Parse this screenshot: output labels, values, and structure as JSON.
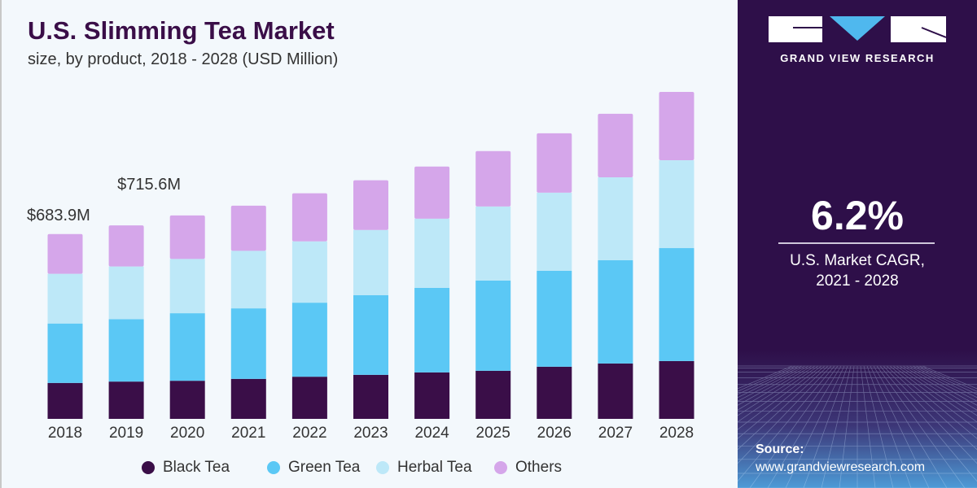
{
  "header": {
    "title": "U.S. Slimming Tea Market",
    "subtitle": "size, by product, 2018 - 2028 (USD Million)"
  },
  "chart_data": {
    "type": "bar",
    "stacked": true,
    "title": "U.S. Slimming Tea Market",
    "subtitle": "size, by product, 2018 - 2028 (USD Million)",
    "xlabel": "",
    "ylabel": "",
    "ylim": [
      0,
      1250
    ],
    "grid": false,
    "legend_position": "bottom",
    "categories": [
      "2018",
      "2019",
      "2020",
      "2021",
      "2022",
      "2023",
      "2024",
      "2025",
      "2026",
      "2027",
      "2028"
    ],
    "series": [
      {
        "name": "Black Tea",
        "color": "#3a0e48",
        "values": [
          133,
          138,
          141,
          148,
          156,
          163,
          172,
          178,
          193,
          205,
          214
        ]
      },
      {
        "name": "Green Tea",
        "color": "#5bc8f5",
        "values": [
          220,
          231,
          250,
          261,
          274,
          295,
          313,
          334,
          355,
          382,
          418
        ]
      },
      {
        "name": "Herbal Tea",
        "color": "#bde8f8",
        "values": [
          184,
          195,
          201,
          213,
          227,
          241,
          256,
          274,
          289,
          307,
          325
        ]
      },
      {
        "name": "Others",
        "color": "#d5a6ea",
        "values": [
          147,
          152,
          161,
          167,
          178,
          184,
          193,
          205,
          220,
          235,
          253
        ]
      }
    ],
    "annotations": [
      {
        "category": "2018",
        "text": "$683.9M"
      },
      {
        "category": "2019",
        "text": "$715.6M"
      }
    ]
  },
  "panel": {
    "brand": "GRAND VIEW RESEARCH",
    "cagr_value": "6.2%",
    "cagr_label_line1": "U.S. Market CAGR,",
    "cagr_label_line2": "2021 - 2028",
    "source_label": "Source:",
    "source_url": "www.grandviewresearch.com",
    "logo_accent": "#4fb8ee"
  }
}
